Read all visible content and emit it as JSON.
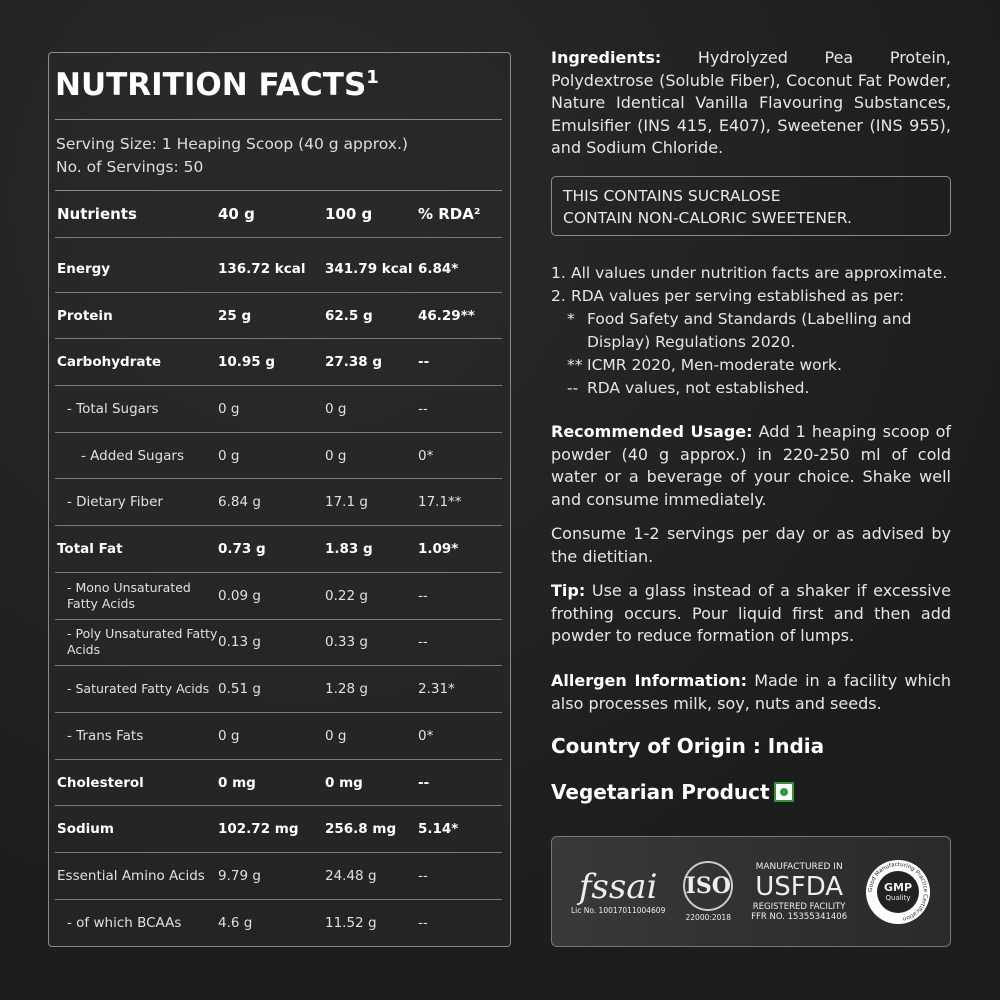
{
  "nutrition": {
    "title": "NUTRITION FACTS",
    "title_sup": "1",
    "serving_size": "Serving Size: 1 Heaping Scoop (40 g approx.)",
    "servings": "No. of Servings: 50",
    "headers": [
      "Nutrients",
      "40 g",
      "100 g",
      "% RDA²"
    ],
    "rows": [
      [
        "Energy",
        "136.72 kcal",
        "341.79 kcal",
        "6.84*"
      ],
      [
        "Protein",
        "25 g",
        "62.5 g",
        "46.29**"
      ],
      [
        "Carbohydrate",
        "10.95 g",
        "27.38 g",
        "--"
      ],
      [
        "- Total Sugars",
        "0 g",
        "0 g",
        "--"
      ],
      [
        "- Added Sugars",
        "0 g",
        "0 g",
        "0*"
      ],
      [
        "- Dietary Fiber",
        "6.84 g",
        "17.1 g",
        "17.1**"
      ],
      [
        "Total Fat",
        "0.73 g",
        "1.83 g",
        "1.09*"
      ],
      [
        "- Mono Unsaturated Fatty Acids",
        "0.09 g",
        "0.22 g",
        "--"
      ],
      [
        "- Poly Unsaturated Fatty Acids",
        "0.13 g",
        "0.33 g",
        "--"
      ],
      [
        "- Saturated Fatty Acids",
        "0.51 g",
        "1.28 g",
        "2.31*"
      ],
      [
        "- Trans Fats",
        "0 g",
        "0 g",
        "0*"
      ],
      [
        "Cholesterol",
        "0 mg",
        "0 mg",
        "--"
      ],
      [
        "Sodium",
        "102.72 mg",
        "256.8 mg",
        "5.14*"
      ],
      [
        "Essential Amino Acids",
        "9.79 g",
        "24.48 g",
        "--"
      ],
      [
        "- of which BCAAs",
        "4.6 g",
        "11.52 g",
        "--"
      ]
    ]
  },
  "ingredients": {
    "label": "Ingredients:",
    "text": "Hydrolyzed Pea Protein, Polydextrose (Soluble Fiber), Coconut Fat Powder, Nature Identical Vanilla Flavouring Substances, Emulsifier (INS 415, E407), Sweetener (INS 955), and Sodium Chloride."
  },
  "warning": [
    "THIS CONTAINS SUCRALOSE",
    "CONTAIN NON-CALORIC SWEETENER."
  ],
  "notes": [
    {
      "m": "1.",
      "t": "All values under nutrition facts are approximate."
    },
    {
      "m": "2.",
      "t": "RDA values per serving established as per:"
    },
    {
      "m": "*",
      "t": "Food Safety and Standards (Labelling and Display) Regulations 2020."
    },
    {
      "m": "**",
      "t": "ICMR 2020, Men-moderate work."
    },
    {
      "m": "--",
      "t": "RDA values, not established."
    }
  ],
  "usage": {
    "label": "Recommended Usage:",
    "text": "Add 1 heaping scoop of powder (40 g approx.) in 220-250 ml of cold water or a beverage of your choice. Shake well and consume immediately."
  },
  "consume": "Consume 1-2 servings per day or as advised by the dietitian.",
  "tip": {
    "label": "Tip:",
    "text": "Use a glass instead of a shaker if excessive frothing occurs. Pour liquid first and then add powder to reduce formation of lumps."
  },
  "allergen": {
    "label": "Allergen Information:",
    "text": "Made in a facility which also processes milk, soy, nuts and seeds."
  },
  "origin": "Country of Origin : India",
  "veg": "Vegetarian Product",
  "certs": {
    "fssai": "fssai",
    "fssai_lic": "Lic No. 10017011004609",
    "iso": "ISO",
    "iso_num": "22000:2018",
    "usfda_top": "MANUFACTURED IN",
    "usfda": "USFDA",
    "usfda_reg": "REGISTERED FACILITY",
    "usfda_ffr": "FFR NO. 15355341406",
    "gmp": "GMP",
    "gmp_sub": "Quality",
    "gmp_ring": "Good Manufacturing Practice Certification"
  },
  "colors": {
    "background": "#1e1f1f",
    "veg_green": "#2a9a3a"
  }
}
